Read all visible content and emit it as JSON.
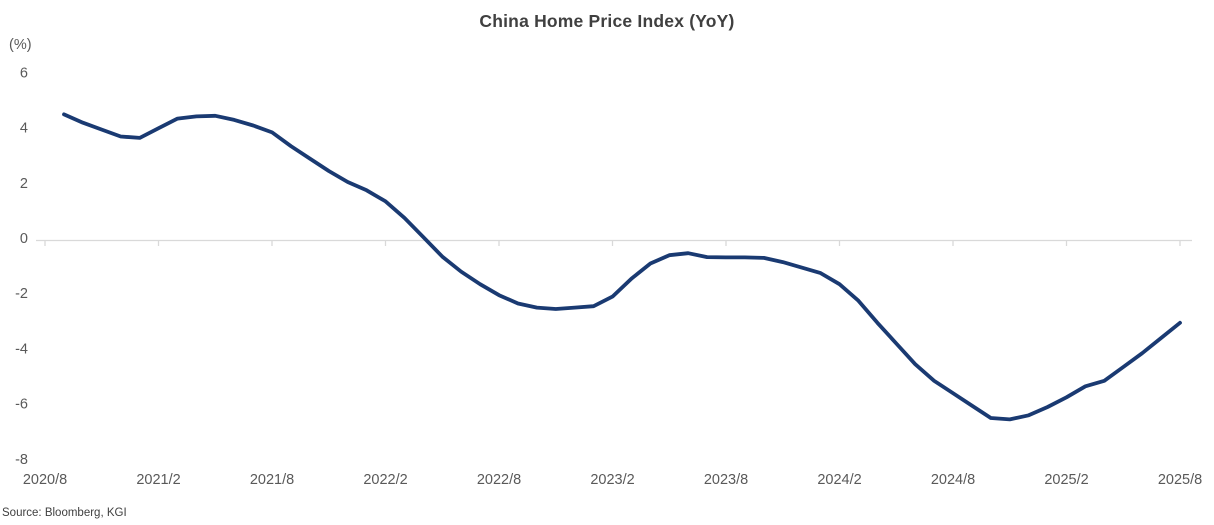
{
  "chart_data": {
    "type": "line",
    "title": "China Home Price Index (YoY)",
    "unit_label": "(%)",
    "source": "Source: Bloomberg, KGI",
    "xlabel": "",
    "ylabel": "(%)",
    "ylim": [
      -8,
      6
    ],
    "y_ticks": [
      6,
      4,
      2,
      0,
      -2,
      -4,
      -6,
      -8
    ],
    "grid": false,
    "legend_position": "none",
    "x_tick_labels": [
      "2020/8",
      "2021/2",
      "2021/8",
      "2022/2",
      "2022/8",
      "2023/2",
      "2023/8",
      "2024/2",
      "2024/8",
      "2025/2",
      "2025/8"
    ],
    "series": [
      {
        "name": "China Home Price Index (YoY)",
        "color": "#1A3A72",
        "x": [
          "2020/9",
          "2020/10",
          "2020/11",
          "2020/12",
          "2021/1",
          "2021/2",
          "2021/3",
          "2021/4",
          "2021/5",
          "2021/6",
          "2021/7",
          "2021/8",
          "2021/9",
          "2021/10",
          "2021/11",
          "2021/12",
          "2022/1",
          "2022/2",
          "2022/3",
          "2022/4",
          "2022/5",
          "2022/6",
          "2022/7",
          "2022/8",
          "2022/9",
          "2022/10",
          "2022/11",
          "2022/12",
          "2023/1",
          "2023/2",
          "2023/3",
          "2023/4",
          "2023/5",
          "2023/6",
          "2023/7",
          "2023/8",
          "2023/9",
          "2023/10",
          "2023/11",
          "2023/12",
          "2024/1",
          "2024/2",
          "2024/3",
          "2024/4",
          "2024/5",
          "2024/6",
          "2024/7",
          "2024/8",
          "2024/9",
          "2024/10",
          "2024/11",
          "2024/12",
          "2025/1",
          "2025/2",
          "2025/3",
          "2025/4",
          "2025/5",
          "2025/6",
          "2025/7",
          "2025/8"
        ],
        "values": [
          4.55,
          4.25,
          4.0,
          3.75,
          3.7,
          4.05,
          4.4,
          4.48,
          4.5,
          4.35,
          4.15,
          3.9,
          3.4,
          2.95,
          2.5,
          2.1,
          1.8,
          1.4,
          0.8,
          0.1,
          -0.6,
          -1.15,
          -1.6,
          -2.0,
          -2.3,
          -2.45,
          -2.5,
          -2.45,
          -2.4,
          -2.05,
          -1.4,
          -0.85,
          -0.55,
          -0.48,
          -0.62,
          -0.63,
          -0.63,
          -0.65,
          -0.8,
          -1.0,
          -1.2,
          -1.6,
          -2.2,
          -3.0,
          -3.75,
          -4.5,
          -5.1,
          -5.55,
          -6.0,
          -6.45,
          -6.5,
          -6.35,
          -6.05,
          -5.7,
          -5.3,
          -5.1,
          -4.6,
          -4.1,
          -3.55,
          -3.0
        ]
      }
    ],
    "axis_color": "#D9D9D9",
    "label_color": "#595959",
    "title_color": "#404040"
  }
}
